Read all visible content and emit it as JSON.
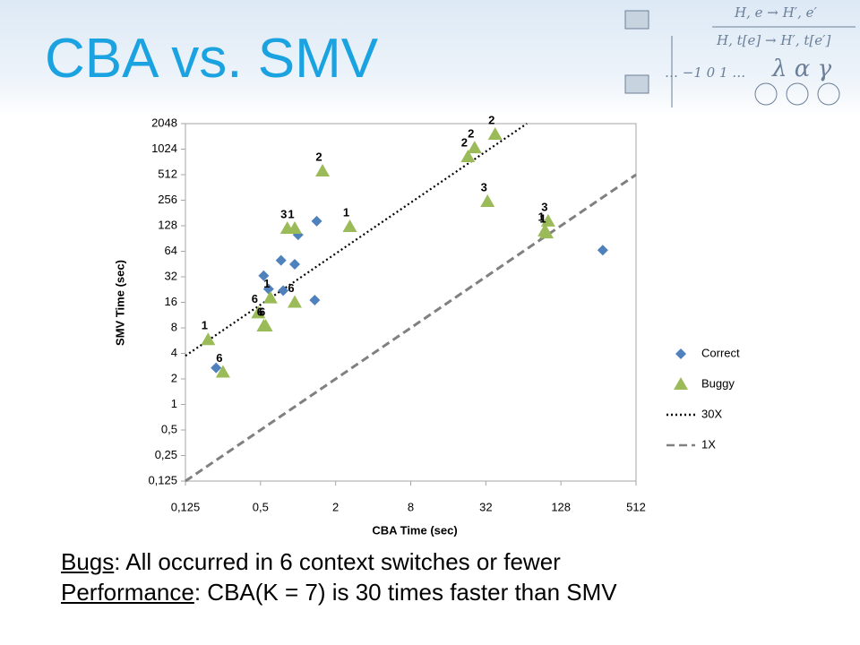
{
  "header": {
    "title": "CBA vs. SMV",
    "decor": [
      "H, e  →  H′, e′",
      "H, t[e]  →  H′, t[e′]",
      "… −1  0  1 …",
      "λ α γ"
    ]
  },
  "chart_data": {
    "type": "scatter",
    "x_label": "CBA Time (sec)",
    "y_label": "SMV Time (sec)",
    "log_x": true,
    "log_y": true,
    "xlim": [
      0.125,
      512
    ],
    "ylim": [
      0.125,
      2048
    ],
    "xticks": [
      {
        "value": 0.125,
        "label": "0,125"
      },
      {
        "value": 0.5,
        "label": "0,5"
      },
      2,
      8,
      32,
      128,
      512
    ],
    "yticks": [
      {
        "value": 0.125,
        "label": "0,125"
      },
      {
        "value": 0.25,
        "label": "0,25"
      },
      {
        "value": 0.5,
        "label": "0,5"
      },
      1,
      2,
      4,
      8,
      16,
      32,
      64,
      128,
      256,
      512,
      1024,
      2048
    ],
    "legend": "right",
    "series": [
      {
        "name": "Correct",
        "color": "#4f81bd",
        "marker": "diamond",
        "x": [
          0.22,
          0.53,
          0.73,
          0.94,
          1.0,
          1.41,
          0.58,
          0.76,
          1.36,
          277
        ],
        "values": [
          2.7,
          33,
          50,
          45,
          100,
          145,
          23,
          22,
          17,
          66
        ]
      },
      {
        "name": "Buggy",
        "color": "#9bbb59",
        "marker": "triangle",
        "x": [
          0.19,
          0.25,
          0.48,
          0.53,
          0.55,
          0.6,
          0.94,
          0.82,
          0.94,
          1.57,
          2.6,
          23,
          26,
          38,
          33,
          101,
          95,
          98
        ],
        "values": [
          5.8,
          2.4,
          12,
          8.4,
          8.4,
          18,
          16,
          119,
          119,
          564,
          125,
          833,
          1060,
          1530,
          247,
          145,
          111,
          105
        ],
        "point_labels": [
          1,
          6,
          6,
          6,
          6,
          1,
          6,
          3,
          1,
          2,
          1,
          2,
          2,
          2,
          3,
          3,
          1,
          1
        ]
      }
    ],
    "reference_lines": [
      {
        "name": "30X",
        "factor": 30,
        "style": "dotted",
        "color": "#000000"
      },
      {
        "name": "1X",
        "factor": 1,
        "style": "dashed",
        "color": "#808080"
      }
    ]
  },
  "notes": [
    {
      "label": "Bugs",
      "text": ": All occurred in 6 context switches or fewer"
    },
    {
      "label": "Performance",
      "text": ": CBA(K = 7) is 30 times faster than SMV"
    }
  ]
}
